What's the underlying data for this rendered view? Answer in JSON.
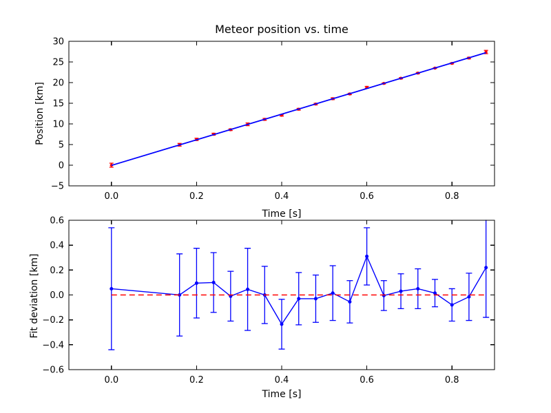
{
  "figure": {
    "background": "#ffffff",
    "frame_color": "#000000",
    "data_color": "#ff0000",
    "fit_color": "#0000ff"
  },
  "chart_data": [
    {
      "id": "position-vs-time",
      "type": "scatter",
      "title": "Meteor position vs. time",
      "xlabel": "Time [s]",
      "ylabel": "Position [km]",
      "xlim": [
        -0.1,
        0.9
      ],
      "ylim": [
        -5,
        30
      ],
      "grid": false,
      "legend": "none",
      "xtick_values": [
        0.0,
        0.2,
        0.4,
        0.6,
        0.8
      ],
      "xtick_labels": [
        "0.0",
        "0.2",
        "0.4",
        "0.6",
        "0.8"
      ],
      "ytick_values": [
        30,
        25,
        20,
        15,
        10,
        5,
        0,
        -5
      ],
      "ytick_labels": [
        "30",
        "25",
        "20",
        "15",
        "10",
        "5",
        "0",
        "−5"
      ],
      "series": [
        {
          "name": "measured-position-errorbars",
          "type": "errorbar",
          "marker": "point",
          "connect": false,
          "color": "#ff0000",
          "x": [
            0.0,
            0.16,
            0.2,
            0.24,
            0.28,
            0.32,
            0.36,
            0.4,
            0.44,
            0.48,
            0.52,
            0.56,
            0.6,
            0.64,
            0.68,
            0.72,
            0.76,
            0.8,
            0.84,
            0.88
          ],
          "y": [
            0.0,
            4.95,
            6.25,
            7.5,
            8.6,
            9.9,
            11.1,
            12.1,
            13.55,
            14.8,
            16.1,
            17.25,
            18.85,
            19.8,
            21.05,
            22.3,
            23.5,
            24.65,
            25.95,
            27.4
          ],
          "yerr": [
            0.49,
            0.33,
            0.28,
            0.24,
            0.2,
            0.33,
            0.23,
            0.2,
            0.21,
            0.19,
            0.22,
            0.17,
            0.23,
            0.12,
            0.14,
            0.16,
            0.11,
            0.13,
            0.19,
            0.4
          ]
        },
        {
          "name": "linear-fit-line",
          "type": "line",
          "style": "solid",
          "color": "#0000ff",
          "x": [
            0.0,
            0.88
          ],
          "y": [
            -0.05,
            27.25
          ]
        }
      ]
    },
    {
      "id": "fit-deviation",
      "type": "scatter",
      "title": "",
      "xlabel": "Time [s]",
      "ylabel": "Fit deviation [km]",
      "xlim": [
        -0.1,
        0.9
      ],
      "ylim": [
        -0.6,
        0.6
      ],
      "grid": false,
      "legend": "none",
      "xtick_values": [
        0.0,
        0.2,
        0.4,
        0.6,
        0.8
      ],
      "xtick_labels": [
        "0.0",
        "0.2",
        "0.4",
        "0.6",
        "0.8"
      ],
      "ytick_values": [
        0.6,
        0.4,
        0.2,
        0.0,
        -0.2,
        -0.4,
        -0.6
      ],
      "ytick_labels": [
        "0.6",
        "0.4",
        "0.2",
        "0.0",
        "−0.2",
        "−0.4",
        "−0.6"
      ],
      "series": [
        {
          "name": "residuals-errorbars",
          "type": "errorbar",
          "marker": "point",
          "connect": true,
          "color": "#0000ff",
          "x": [
            0.0,
            0.16,
            0.2,
            0.24,
            0.28,
            0.32,
            0.36,
            0.4,
            0.44,
            0.48,
            0.52,
            0.56,
            0.6,
            0.64,
            0.68,
            0.72,
            0.76,
            0.8,
            0.84,
            0.88
          ],
          "y": [
            0.05,
            0.0,
            0.095,
            0.1,
            -0.01,
            0.045,
            0.0,
            -0.235,
            -0.03,
            -0.03,
            0.015,
            -0.055,
            0.31,
            -0.005,
            0.03,
            0.05,
            0.015,
            -0.08,
            -0.015,
            0.22
          ],
          "yerr": [
            0.49,
            0.33,
            0.28,
            0.24,
            0.2,
            0.33,
            0.23,
            0.2,
            0.21,
            0.19,
            0.22,
            0.17,
            0.23,
            0.12,
            0.14,
            0.16,
            0.11,
            0.13,
            0.19,
            0.4
          ]
        },
        {
          "name": "zero-reference-line",
          "type": "line",
          "style": "dashed",
          "color": "#ff0000",
          "x": [
            0.0,
            0.88
          ],
          "y": [
            0.0,
            0.0
          ]
        }
      ]
    }
  ]
}
